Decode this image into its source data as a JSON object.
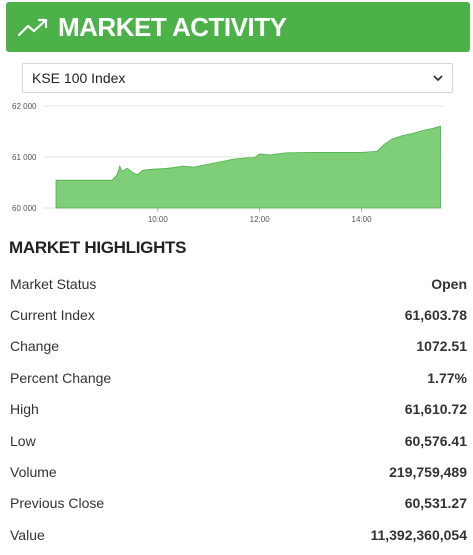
{
  "header": {
    "title": "MARKET ACTIVITY",
    "icon": "trending-up-icon"
  },
  "index_select": {
    "value": "KSE 100 Index"
  },
  "chart_data": {
    "type": "area",
    "color": "#7fcf78",
    "line_color": "#4cb148",
    "y_ticks": [
      "62 000",
      "61 000",
      "60 000"
    ],
    "y_tick_values": [
      62000,
      61000,
      60000
    ],
    "x_ticks": [
      "10:00",
      "12:00",
      "14:00"
    ],
    "x_tick_values": [
      10,
      12,
      14
    ],
    "xlim": [
      8.0,
      15.6
    ],
    "ylim": [
      60000,
      62000
    ],
    "points": [
      [
        8.0,
        60545
      ],
      [
        9.1,
        60545
      ],
      [
        9.2,
        60650
      ],
      [
        9.25,
        60820
      ],
      [
        9.3,
        60720
      ],
      [
        9.4,
        60780
      ],
      [
        9.5,
        60700
      ],
      [
        9.6,
        60650
      ],
      [
        9.7,
        60740
      ],
      [
        9.9,
        60760
      ],
      [
        10.1,
        60770
      ],
      [
        10.3,
        60790
      ],
      [
        10.5,
        60820
      ],
      [
        10.7,
        60800
      ],
      [
        10.9,
        60840
      ],
      [
        11.1,
        60880
      ],
      [
        11.3,
        60920
      ],
      [
        11.5,
        60960
      ],
      [
        11.7,
        60980
      ],
      [
        11.9,
        60990
      ],
      [
        12.0,
        61060
      ],
      [
        12.2,
        61040
      ],
      [
        12.5,
        61080
      ],
      [
        13.0,
        61090
      ],
      [
        13.5,
        61090
      ],
      [
        14.0,
        61090
      ],
      [
        14.3,
        61110
      ],
      [
        14.45,
        61250
      ],
      [
        14.6,
        61350
      ],
      [
        14.8,
        61420
      ],
      [
        15.0,
        61460
      ],
      [
        15.2,
        61520
      ],
      [
        15.4,
        61560
      ],
      [
        15.55,
        61604
      ]
    ]
  },
  "highlights": {
    "title": "MARKET HIGHLIGHTS",
    "rows": [
      {
        "label": "Market Status",
        "value": "Open"
      },
      {
        "label": "Current Index",
        "value": "61,603.78"
      },
      {
        "label": "Change",
        "value": "1072.51"
      },
      {
        "label": "Percent Change",
        "value": "1.77%"
      },
      {
        "label": "High",
        "value": "61,610.72"
      },
      {
        "label": "Low",
        "value": "60,576.41"
      },
      {
        "label": "Volume",
        "value": "219,759,489"
      },
      {
        "label": "Previous Close",
        "value": "60,531.27"
      },
      {
        "label": "Value",
        "value": "11,392,360,054"
      }
    ]
  }
}
